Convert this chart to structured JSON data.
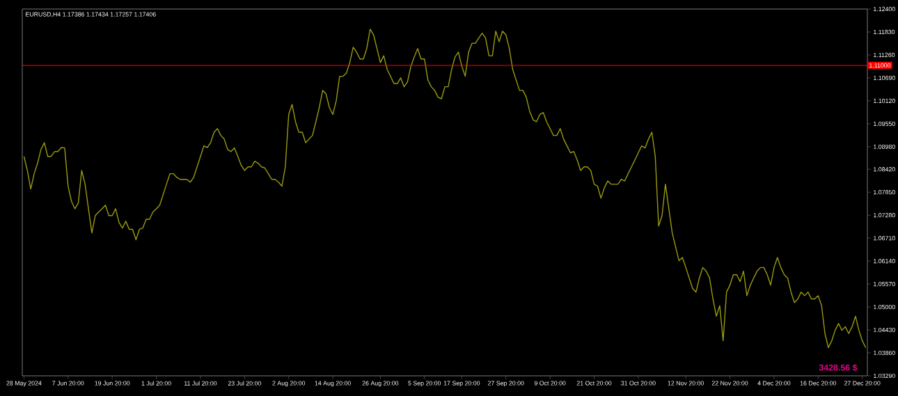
{
  "chart_data": {
    "type": "line",
    "title": "EURUSD,H4  1.17386 1.17434 1.17257 1.17406",
    "annotations": [
      "3428.56 $"
    ],
    "categories": [
      "28 May 2024",
      null,
      null,
      null,
      null,
      null,
      null,
      null,
      null,
      null,
      null,
      null,
      null,
      "7 Jun 20:00",
      null,
      null,
      null,
      null,
      null,
      null,
      null,
      null,
      null,
      null,
      null,
      null,
      "19 Jun 20:00",
      null,
      null,
      null,
      null,
      null,
      null,
      null,
      null,
      null,
      null,
      null,
      null,
      "1 Jul 20:00",
      null,
      null,
      null,
      null,
      null,
      null,
      null,
      null,
      null,
      null,
      null,
      null,
      "11 Jul 20:00",
      null,
      null,
      null,
      null,
      null,
      null,
      null,
      null,
      null,
      null,
      null,
      null,
      "23 Jul 20:00",
      null,
      null,
      null,
      null,
      null,
      null,
      null,
      null,
      null,
      null,
      null,
      null,
      "2 Aug 20:00",
      null,
      null,
      null,
      null,
      null,
      null,
      null,
      null,
      null,
      null,
      null,
      null,
      "14 Aug 20:00",
      null,
      null,
      null,
      null,
      null,
      null,
      null,
      null,
      null,
      null,
      null,
      null,
      null,
      "26 Aug 20:00",
      null,
      null,
      null,
      null,
      null,
      null,
      null,
      null,
      null,
      null,
      null,
      null,
      "5 Sep 20:00",
      null,
      null,
      null,
      null,
      null,
      null,
      null,
      null,
      null,
      null,
      "17 Sep 20:00",
      null,
      null,
      null,
      null,
      null,
      null,
      null,
      null,
      null,
      null,
      null,
      null,
      "27 Sep 20:00",
      null,
      null,
      null,
      null,
      null,
      null,
      null,
      null,
      null,
      null,
      null,
      null,
      "9 Oct 20:00",
      null,
      null,
      null,
      null,
      null,
      null,
      null,
      null,
      null,
      null,
      null,
      null,
      "21 Oct 20:00",
      null,
      null,
      null,
      null,
      null,
      null,
      null,
      null,
      null,
      null,
      null,
      null,
      "31 Oct 20:00",
      null,
      null,
      null,
      null,
      null,
      null,
      null,
      null,
      null,
      null,
      null,
      null,
      null,
      "12 Nov 20:00",
      null,
      null,
      null,
      null,
      null,
      null,
      null,
      null,
      null,
      null,
      null,
      null,
      "22 Nov 20:00",
      null,
      null,
      null,
      null,
      null,
      null,
      null,
      null,
      null,
      null,
      null,
      null,
      "4 Dec 20:00",
      null,
      null,
      null,
      null,
      null,
      null,
      null,
      null,
      null,
      null,
      null,
      null,
      "16 Dec 20:00",
      null,
      null,
      null,
      null,
      null,
      null,
      null,
      null,
      null,
      null,
      null,
      null,
      "27 Dec 20:00",
      null
    ],
    "series": [
      {
        "color": "#9a9a10",
        "values": [
          1.0874,
          1.0839,
          1.0793,
          1.0831,
          1.0857,
          1.0891,
          1.0908,
          1.0874,
          1.0874,
          1.0886,
          1.0886,
          1.0896,
          1.0895,
          1.08,
          1.0762,
          1.0744,
          1.0758,
          1.0839,
          1.0805,
          1.0744,
          1.0684,
          1.0727,
          1.0736,
          1.0744,
          1.0753,
          1.0727,
          1.0727,
          1.0744,
          1.071,
          1.0696,
          1.0713,
          1.0693,
          1.0693,
          1.0667,
          1.0693,
          1.0696,
          1.0718,
          1.0718,
          1.0736,
          1.0744,
          1.0753,
          1.0779,
          1.0805,
          1.0831,
          1.0831,
          1.0822,
          1.0817,
          1.0817,
          1.0817,
          1.081,
          1.0822,
          1.0848,
          1.0874,
          1.09,
          1.0896,
          1.0908,
          1.0934,
          1.0943,
          1.0926,
          1.0917,
          1.0891,
          1.0886,
          1.0895,
          1.0874,
          1.0852,
          1.0839,
          1.0848,
          1.0848,
          1.0862,
          1.0857,
          1.0848,
          1.0845,
          1.0831,
          1.0817,
          1.0817,
          1.081,
          1.08,
          1.0848,
          1.0978,
          1.1003,
          1.096,
          1.0934,
          1.0934,
          1.0908,
          1.0917,
          1.0926,
          1.096,
          1.0995,
          1.1038,
          1.1029,
          1.0995,
          1.0978,
          1.1012,
          1.1073,
          1.1073,
          1.1081,
          1.1107,
          1.1145,
          1.1133,
          1.1116,
          1.1116,
          1.1142,
          1.119,
          1.1176,
          1.1142,
          1.1107,
          1.1124,
          1.109,
          1.1073,
          1.1055,
          1.1055,
          1.1069,
          1.1047,
          1.1059,
          1.1098,
          1.1121,
          1.1142,
          1.1116,
          1.1116,
          1.1064,
          1.1047,
          1.1038,
          1.1021,
          1.1017,
          1.1047,
          1.1047,
          1.109,
          1.1121,
          1.1133,
          1.1098,
          1.1073,
          1.1133,
          1.1155,
          1.1155,
          1.1168,
          1.118,
          1.1168,
          1.1124,
          1.1124,
          1.1185,
          1.1159,
          1.1185,
          1.1176,
          1.1142,
          1.109,
          1.1064,
          1.1038,
          1.1038,
          1.1021,
          1.0986,
          1.0965,
          1.096,
          1.0978,
          1.0983,
          1.096,
          1.0943,
          1.0926,
          1.0926,
          1.0943,
          1.0917,
          1.09,
          1.0883,
          1.0886,
          1.0865,
          1.0839,
          1.0848,
          1.0848,
          1.0839,
          1.0805,
          1.08,
          1.077,
          1.0796,
          1.0813,
          1.0805,
          1.0805,
          1.0805,
          1.0817,
          1.0813,
          1.0831,
          1.0848,
          1.0865,
          1.0883,
          1.09,
          1.0895,
          1.0917,
          1.0934,
          1.0874,
          1.0701,
          1.0727,
          1.0805,
          1.0744,
          1.0684,
          1.0649,
          1.0615,
          1.0623,
          1.0598,
          1.0572,
          1.0546,
          1.0537,
          1.0572,
          1.0598,
          1.0589,
          1.0572,
          1.052,
          1.0477,
          1.0503,
          1.0416,
          1.0537,
          1.0554,
          1.058,
          1.058,
          1.0563,
          1.0589,
          1.0528,
          1.0554,
          1.0572,
          1.0589,
          1.0598,
          1.0598,
          1.058,
          1.0554,
          1.0598,
          1.0623,
          1.0598,
          1.058,
          1.0572,
          1.0537,
          1.0511,
          1.052,
          1.0537,
          1.0528,
          1.0537,
          1.052,
          1.052,
          1.0528,
          1.0503,
          1.0434,
          1.0399,
          1.0416,
          1.0442,
          1.0459,
          1.0442,
          1.0451,
          1.0434,
          1.0451,
          1.0477,
          1.0442,
          1.0416,
          1.0399
        ]
      }
    ],
    "ylim": [
      1.0329,
      1.124
    ],
    "yticks": [
      {
        "value": 1.124,
        "label": "1.12400"
      },
      {
        "value": 1.1183,
        "label": "1.11830"
      },
      {
        "value": 1.1126,
        "label": "1.11260"
      },
      {
        "value": 1.1069,
        "label": "1.10690"
      },
      {
        "value": 1.1012,
        "label": "1.10120"
      },
      {
        "value": 1.0955,
        "label": "1.09550"
      },
      {
        "value": 1.0898,
        "label": "1.08980"
      },
      {
        "value": 1.0842,
        "label": "1.08420"
      },
      {
        "value": 1.0785,
        "label": "1.07850"
      },
      {
        "value": 1.0728,
        "label": "1.07280"
      },
      {
        "value": 1.0671,
        "label": "1.06710"
      },
      {
        "value": 1.0614,
        "label": "1.06140"
      },
      {
        "value": 1.0557,
        "label": "1.05570"
      },
      {
        "value": 1.05,
        "label": "1.05000"
      },
      {
        "value": 1.0443,
        "label": "1.04430"
      },
      {
        "value": 1.0386,
        "label": "1.03860"
      },
      {
        "value": 1.0329,
        "label": "1.03290"
      }
    ],
    "ref_lines": [
      {
        "axis": "y",
        "value": 1.11,
        "label": "1.11000",
        "color": "#ff0000"
      }
    ]
  }
}
